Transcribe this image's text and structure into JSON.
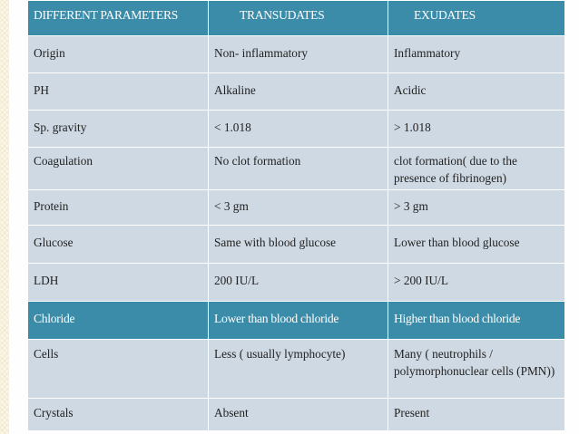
{
  "table": {
    "header": {
      "col1": "DIFFERENT PARAMETERS",
      "col2": "TRANSUDATES",
      "col3": "EXUDATES"
    },
    "rows": [
      {
        "parameter": "Origin",
        "transudates": "Non- inflammatory",
        "exudates": "Inflammatory"
      },
      {
        "parameter": "PH",
        "transudates": "Alkaline",
        "exudates": "Acidic"
      },
      {
        "parameter": "Sp. gravity",
        "transudates": "< 1.018",
        "exudates": "> 1.018"
      },
      {
        "parameter": "Coagulation",
        "transudates": "No clot formation",
        "exudates": "clot formation( due to the presence of fibrinogen)"
      },
      {
        "parameter": "Protein",
        "transudates": "< 3 gm",
        "exudates": "> 3 gm"
      },
      {
        "parameter": "Glucose",
        "transudates": "Same with blood glucose",
        "exudates": "Lower than blood glucose"
      },
      {
        "parameter": "LDH",
        "transudates": "200  IU/L",
        "exudates": "> 200  IU/L"
      },
      {
        "parameter": "Chloride",
        "transudates": "Lower than blood  chloride",
        "exudates": "Higher than blood chloride"
      },
      {
        "parameter": "Cells",
        "transudates": "Less ( usually lymphocyte)",
        "exudates": "Many ( neutrophils / polymorphonuclear cells (PMN))"
      },
      {
        "parameter": "Crystals",
        "transudates": "Absent",
        "exudates": "Present"
      }
    ]
  },
  "colors": {
    "header_bg": "#3a8ca8",
    "row_light_bg": "#cfd9e3",
    "row_white_bg": "#fefefe",
    "slide_texture": "#fbf6e6"
  }
}
